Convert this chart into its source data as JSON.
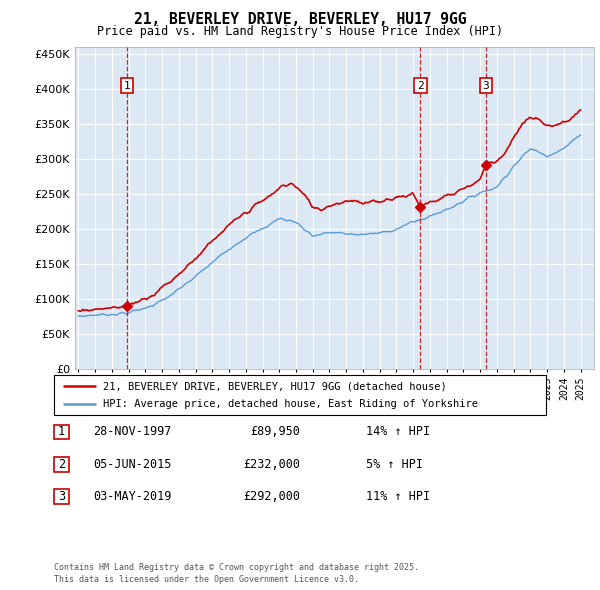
{
  "title_line1": "21, BEVERLEY DRIVE, BEVERLEY, HU17 9GG",
  "title_line2": "Price paid vs. HM Land Registry's House Price Index (HPI)",
  "legend_label_red": "21, BEVERLEY DRIVE, BEVERLEY, HU17 9GG (detached house)",
  "legend_label_blue": "HPI: Average price, detached house, East Riding of Yorkshire",
  "footer_line1": "Contains HM Land Registry data © Crown copyright and database right 2025.",
  "footer_line2": "This data is licensed under the Open Government Licence v3.0.",
  "transactions": [
    {
      "id": 1,
      "date": "28-NOV-1997",
      "price": 89950,
      "hpi_rel": "14% ↑ HPI",
      "year": 1997.92
    },
    {
      "id": 2,
      "date": "05-JUN-2015",
      "price": 232000,
      "hpi_rel": "5% ↑ HPI",
      "year": 2015.43
    },
    {
      "id": 3,
      "date": "03-MAY-2019",
      "price": 292000,
      "hpi_rel": "11% ↑ HPI",
      "year": 2019.34
    }
  ],
  "ylim": [
    0,
    460000
  ],
  "yticks": [
    0,
    50000,
    100000,
    150000,
    200000,
    250000,
    300000,
    350000,
    400000,
    450000
  ],
  "xlim_start": 1994.8,
  "xlim_end": 2025.8,
  "bg_color": "#dce9f5",
  "grid_color": "#ffffff",
  "red_line_color": "#cc0000",
  "blue_line_color": "#5b9bd5",
  "vline_color": "#cc0000",
  "box_color": "#cc0000",
  "hpi_blue_anchors_x": [
    1995,
    1996,
    1997,
    1998,
    1999,
    2000,
    2001,
    2002,
    2003,
    2004,
    2005,
    2006,
    2007,
    2008,
    2009,
    2010,
    2011,
    2012,
    2013,
    2014,
    2015,
    2016,
    2017,
    2018,
    2019,
    2020,
    2021,
    2022,
    2023,
    2024,
    2025
  ],
  "hpi_blue_anchors_y": [
    75000,
    77000,
    78000,
    80000,
    87000,
    97000,
    113000,
    132000,
    152000,
    172000,
    188000,
    200000,
    215000,
    210000,
    190000,
    195000,
    193000,
    192000,
    194000,
    200000,
    210000,
    218000,
    228000,
    240000,
    252000,
    260000,
    290000,
    315000,
    305000,
    315000,
    335000
  ],
  "red_anchors_x": [
    1995.0,
    1996.0,
    1997.0,
    1997.92,
    1998.5,
    1999.5,
    2000.5,
    2001.5,
    2002.5,
    2003.5,
    2004.5,
    2005.5,
    2006.5,
    2007.2,
    2007.8,
    2008.5,
    2009.0,
    2009.5,
    2010.0,
    2010.5,
    2011.0,
    2011.5,
    2012.0,
    2012.5,
    2013.0,
    2013.5,
    2014.0,
    2014.5,
    2015.0,
    2015.43,
    2016.0,
    2016.5,
    2017.0,
    2017.5,
    2018.0,
    2018.5,
    2019.0,
    2019.34,
    2020.0,
    2020.5,
    2021.0,
    2021.5,
    2022.0,
    2022.5,
    2023.0,
    2023.5,
    2024.0,
    2024.5,
    2025.0
  ],
  "red_anchors_y": [
    84000,
    85000,
    87000,
    89950,
    96000,
    107000,
    125000,
    147000,
    170000,
    193000,
    215000,
    232000,
    248000,
    262000,
    265000,
    248000,
    232000,
    228000,
    234000,
    237000,
    240000,
    242000,
    235000,
    238000,
    240000,
    243000,
    245000,
    248000,
    250000,
    232000,
    238000,
    242000,
    248000,
    252000,
    258000,
    263000,
    272000,
    292000,
    298000,
    310000,
    330000,
    348000,
    360000,
    355000,
    350000,
    348000,
    352000,
    360000,
    370000
  ]
}
